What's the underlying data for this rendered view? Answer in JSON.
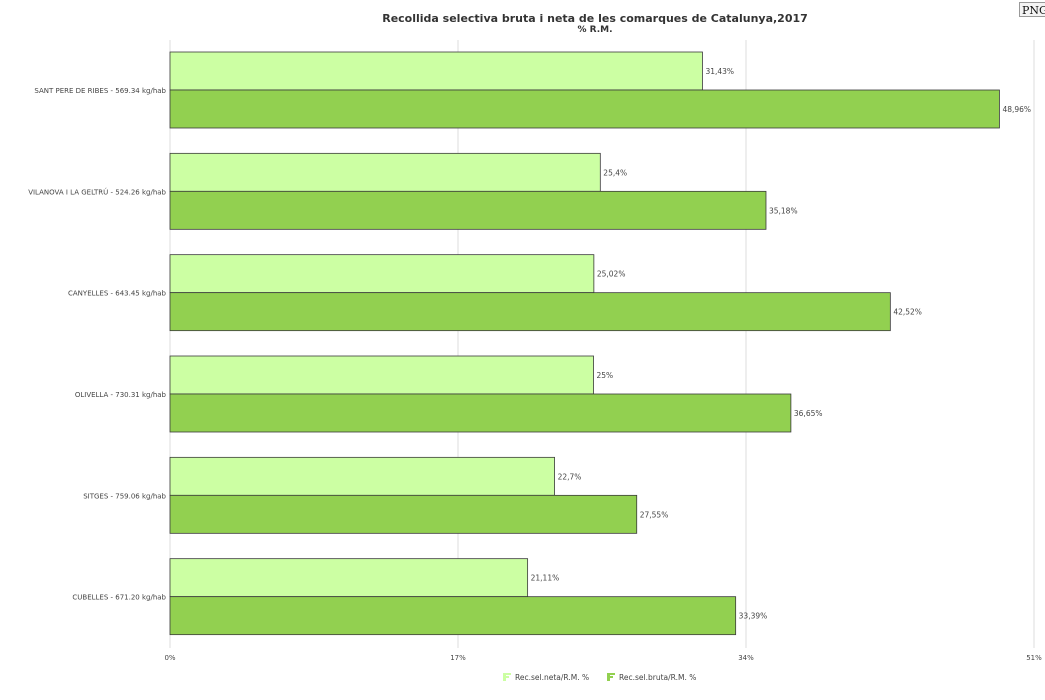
{
  "png_button": "PNG",
  "colors": {
    "light": "#ccffa3",
    "dark": "#92d050",
    "stroke": "#3a3a3a",
    "grid": "#dddddd"
  },
  "chart_data": {
    "type": "bar",
    "orientation": "horizontal",
    "title": "Recollida selectiva bruta i neta de les comarques de Catalunya,2017",
    "subtitle": "% R.M.",
    "categories": [
      "SANT PERE DE RIBES - 569.34 kg/hab",
      "VILANOVA I LA GELTRÚ - 524.26 kg/hab",
      "CANYELLES - 643.45 kg/hab",
      "OLIVELLA - 730.31 kg/hab",
      "SITGES - 759.06 kg/hab",
      "CUBELLES - 671.20 kg/hab"
    ],
    "series": [
      {
        "name": "Rec.sel.neta/R.M. %",
        "values": [
          31.43,
          25.4,
          25.02,
          25,
          22.7,
          21.11
        ],
        "labels": [
          "31,43%",
          "25,4%",
          "25,02%",
          "25%",
          "22,7%",
          "21,11%"
        ]
      },
      {
        "name": "Rec.sel.bruta/R.M. %",
        "values": [
          48.96,
          35.18,
          42.52,
          36.65,
          27.55,
          33.39
        ],
        "labels": [
          "48,96%",
          "35,18%",
          "42,52%",
          "36,65%",
          "27,55%",
          "33,39%"
        ]
      }
    ],
    "xlim": [
      0,
      51
    ],
    "xticks": [
      0,
      17,
      34,
      51
    ],
    "xtick_labels": [
      "0%",
      "17%",
      "34%",
      "51%"
    ],
    "grid": true,
    "legend_position": "bottom"
  }
}
